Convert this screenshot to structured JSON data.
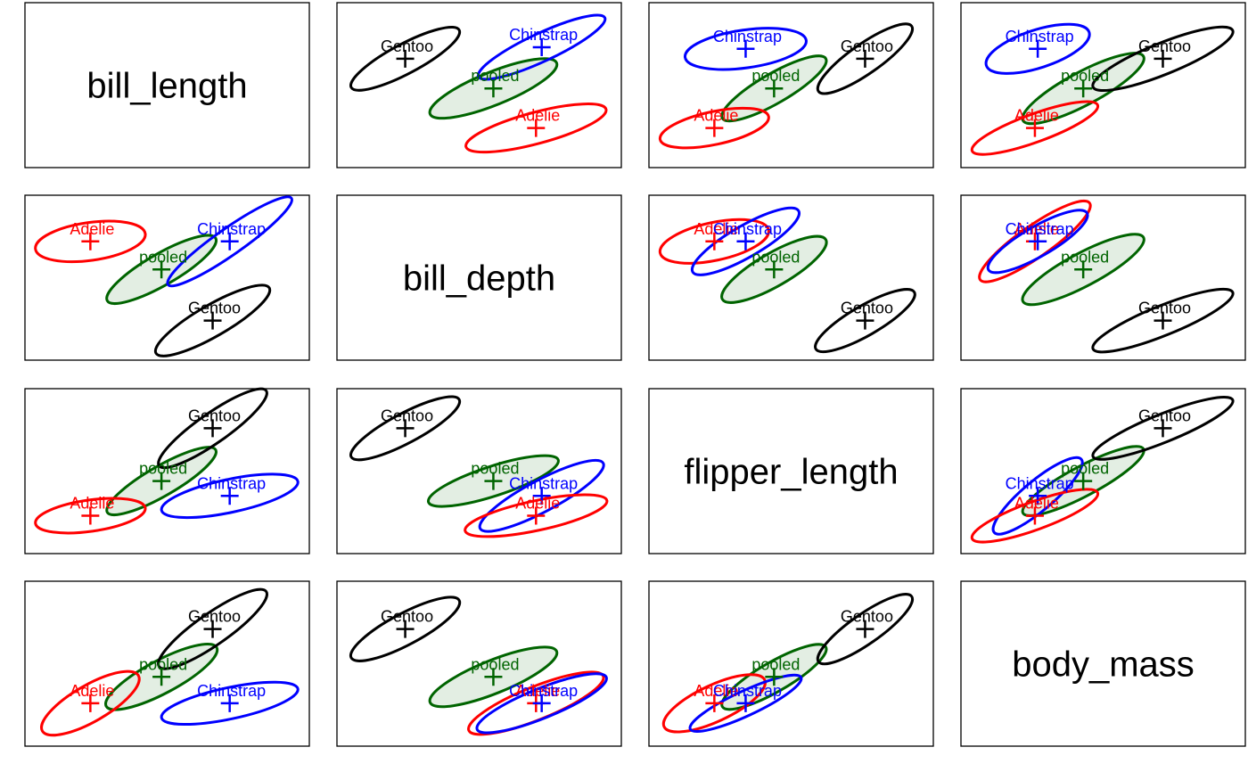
{
  "chart_data": {
    "type": "scatter",
    "description_text": "",
    "variables": [
      "bill_length",
      "bill_depth",
      "flipper_length",
      "body_mass"
    ],
    "groups": [
      {
        "name": "Adelie",
        "color": "#ff0000"
      },
      {
        "name": "Chinstrap",
        "color": "#0000ff"
      },
      {
        "name": "Gentoo",
        "color": "#000000"
      },
      {
        "name": "pooled",
        "color": "#006400",
        "fill": "#e3eee3"
      }
    ],
    "panels": [
      {
        "row": 0,
        "col": 1,
        "x": "bill_depth",
        "y": "bill_length",
        "ellipses": [
          {
            "group": "Gentoo",
            "cx": 0.24,
            "cy": 0.34,
            "a": 0.43,
            "b": 0.18,
            "angle": -28
          },
          {
            "group": "Chinstrap",
            "cx": 0.72,
            "cy": 0.27,
            "a": 0.49,
            "b": 0.17,
            "angle": -25
          },
          {
            "group": "pooled",
            "cx": 0.55,
            "cy": 0.52,
            "a": 0.48,
            "b": 0.2,
            "angle": -22
          },
          {
            "group": "Adelie",
            "cx": 0.7,
            "cy": 0.76,
            "a": 0.51,
            "b": 0.19,
            "angle": -15
          }
        ]
      },
      {
        "row": 0,
        "col": 2,
        "x": "flipper_length",
        "y": "bill_length",
        "ellipses": [
          {
            "group": "Chinstrap",
            "cx": 0.34,
            "cy": 0.28,
            "a": 0.43,
            "b": 0.23,
            "angle": -8
          },
          {
            "group": "Gentoo",
            "cx": 0.76,
            "cy": 0.34,
            "a": 0.4,
            "b": 0.18,
            "angle": -35
          },
          {
            "group": "pooled",
            "cx": 0.44,
            "cy": 0.52,
            "a": 0.42,
            "b": 0.18,
            "angle": -30
          },
          {
            "group": "Adelie",
            "cx": 0.23,
            "cy": 0.76,
            "a": 0.39,
            "b": 0.2,
            "angle": -12
          }
        ]
      },
      {
        "row": 0,
        "col": 3,
        "x": "body_mass",
        "y": "bill_length",
        "ellipses": [
          {
            "group": "Chinstrap",
            "cx": 0.27,
            "cy": 0.28,
            "a": 0.38,
            "b": 0.23,
            "angle": -18
          },
          {
            "group": "Gentoo",
            "cx": 0.71,
            "cy": 0.34,
            "a": 0.53,
            "b": 0.19,
            "angle": -22
          },
          {
            "group": "pooled",
            "cx": 0.43,
            "cy": 0.52,
            "a": 0.48,
            "b": 0.2,
            "angle": -28
          },
          {
            "group": "Adelie",
            "cx": 0.26,
            "cy": 0.76,
            "a": 0.47,
            "b": 0.17,
            "angle": -20
          }
        ]
      },
      {
        "row": 1,
        "col": 0,
        "x": "bill_length",
        "y": "bill_depth",
        "ellipses": [
          {
            "group": "Adelie",
            "cx": 0.23,
            "cy": 0.28,
            "a": 0.39,
            "b": 0.23,
            "angle": -8
          },
          {
            "group": "Chinstrap",
            "cx": 0.72,
            "cy": 0.28,
            "a": 0.53,
            "b": 0.16,
            "angle": -35
          },
          {
            "group": "pooled",
            "cx": 0.48,
            "cy": 0.45,
            "a": 0.44,
            "b": 0.19,
            "angle": -30
          },
          {
            "group": "Gentoo",
            "cx": 0.66,
            "cy": 0.76,
            "a": 0.46,
            "b": 0.19,
            "angle": -30
          }
        ]
      },
      {
        "row": 1,
        "col": 2,
        "x": "flipper_length",
        "y": "bill_depth",
        "ellipses": [
          {
            "group": "Adelie",
            "cx": 0.23,
            "cy": 0.28,
            "a": 0.39,
            "b": 0.23,
            "angle": -12
          },
          {
            "group": "Chinstrap",
            "cx": 0.34,
            "cy": 0.28,
            "a": 0.43,
            "b": 0.19,
            "angle": -30
          },
          {
            "group": "pooled",
            "cx": 0.44,
            "cy": 0.45,
            "a": 0.42,
            "b": 0.2,
            "angle": -30
          },
          {
            "group": "Gentoo",
            "cx": 0.76,
            "cy": 0.76,
            "a": 0.4,
            "b": 0.18,
            "angle": -30
          }
        ]
      },
      {
        "row": 1,
        "col": 3,
        "x": "body_mass",
        "y": "bill_depth",
        "ellipses": [
          {
            "group": "Adelie",
            "cx": 0.26,
            "cy": 0.28,
            "a": 0.47,
            "b": 0.19,
            "angle": -35
          },
          {
            "group": "Chinstrap",
            "cx": 0.27,
            "cy": 0.28,
            "a": 0.4,
            "b": 0.18,
            "angle": -30
          },
          {
            "group": "pooled",
            "cx": 0.43,
            "cy": 0.45,
            "a": 0.48,
            "b": 0.2,
            "angle": -28
          },
          {
            "group": "Gentoo",
            "cx": 0.71,
            "cy": 0.76,
            "a": 0.53,
            "b": 0.18,
            "angle": -22
          }
        ]
      },
      {
        "row": 2,
        "col": 0,
        "x": "bill_length",
        "y": "flipper_length",
        "ellipses": [
          {
            "group": "Gentoo",
            "cx": 0.66,
            "cy": 0.24,
            "a": 0.46,
            "b": 0.18,
            "angle": -35
          },
          {
            "group": "pooled",
            "cx": 0.48,
            "cy": 0.56,
            "a": 0.44,
            "b": 0.18,
            "angle": -30
          },
          {
            "group": "Chinstrap",
            "cx": 0.72,
            "cy": 0.65,
            "a": 0.49,
            "b": 0.2,
            "angle": -12
          },
          {
            "group": "Adelie",
            "cx": 0.23,
            "cy": 0.77,
            "a": 0.39,
            "b": 0.19,
            "angle": -8
          }
        ]
      },
      {
        "row": 2,
        "col": 1,
        "x": "bill_depth",
        "y": "flipper_length",
        "ellipses": [
          {
            "group": "Gentoo",
            "cx": 0.24,
            "cy": 0.24,
            "a": 0.43,
            "b": 0.18,
            "angle": -28
          },
          {
            "group": "pooled",
            "cx": 0.55,
            "cy": 0.56,
            "a": 0.48,
            "b": 0.18,
            "angle": -18
          },
          {
            "group": "Chinstrap",
            "cx": 0.72,
            "cy": 0.65,
            "a": 0.49,
            "b": 0.19,
            "angle": -28
          },
          {
            "group": "Adelie",
            "cx": 0.7,
            "cy": 0.77,
            "a": 0.51,
            "b": 0.18,
            "angle": -12
          }
        ]
      },
      {
        "row": 2,
        "col": 3,
        "x": "body_mass",
        "y": "flipper_length",
        "ellipses": [
          {
            "group": "Gentoo",
            "cx": 0.71,
            "cy": 0.24,
            "a": 0.53,
            "b": 0.17,
            "angle": -22
          },
          {
            "group": "pooled",
            "cx": 0.43,
            "cy": 0.56,
            "a": 0.48,
            "b": 0.18,
            "angle": -28
          },
          {
            "group": "Chinstrap",
            "cx": 0.27,
            "cy": 0.65,
            "a": 0.4,
            "b": 0.18,
            "angle": -40
          },
          {
            "group": "Adelie",
            "cx": 0.26,
            "cy": 0.77,
            "a": 0.47,
            "b": 0.17,
            "angle": -20
          }
        ]
      },
      {
        "row": 3,
        "col": 0,
        "x": "bill_length",
        "y": "body_mass",
        "ellipses": [
          {
            "group": "Gentoo",
            "cx": 0.66,
            "cy": 0.29,
            "a": 0.46,
            "b": 0.19,
            "angle": -35
          },
          {
            "group": "pooled",
            "cx": 0.48,
            "cy": 0.58,
            "a": 0.44,
            "b": 0.2,
            "angle": -28
          },
          {
            "group": "Chinstrap",
            "cx": 0.72,
            "cy": 0.74,
            "a": 0.49,
            "b": 0.19,
            "angle": -12
          },
          {
            "group": "Adelie",
            "cx": 0.23,
            "cy": 0.74,
            "a": 0.39,
            "b": 0.22,
            "angle": -30
          }
        ]
      },
      {
        "row": 3,
        "col": 1,
        "x": "bill_depth",
        "y": "body_mass",
        "ellipses": [
          {
            "group": "Gentoo",
            "cx": 0.24,
            "cy": 0.29,
            "a": 0.43,
            "b": 0.19,
            "angle": -28
          },
          {
            "group": "pooled",
            "cx": 0.55,
            "cy": 0.58,
            "a": 0.48,
            "b": 0.2,
            "angle": -22
          },
          {
            "group": "Adelie",
            "cx": 0.7,
            "cy": 0.74,
            "a": 0.51,
            "b": 0.2,
            "angle": -22
          },
          {
            "group": "Chinstrap",
            "cx": 0.72,
            "cy": 0.74,
            "a": 0.49,
            "b": 0.18,
            "angle": -22
          }
        ]
      },
      {
        "row": 3,
        "col": 2,
        "x": "flipper_length",
        "y": "body_mass",
        "ellipses": [
          {
            "group": "Gentoo",
            "cx": 0.76,
            "cy": 0.29,
            "a": 0.4,
            "b": 0.18,
            "angle": -35
          },
          {
            "group": "pooled",
            "cx": 0.44,
            "cy": 0.58,
            "a": 0.42,
            "b": 0.18,
            "angle": -30
          },
          {
            "group": "Adelie",
            "cx": 0.23,
            "cy": 0.74,
            "a": 0.39,
            "b": 0.22,
            "angle": -25
          },
          {
            "group": "Chinstrap",
            "cx": 0.34,
            "cy": 0.74,
            "a": 0.43,
            "b": 0.15,
            "angle": -25
          }
        ]
      }
    ]
  }
}
